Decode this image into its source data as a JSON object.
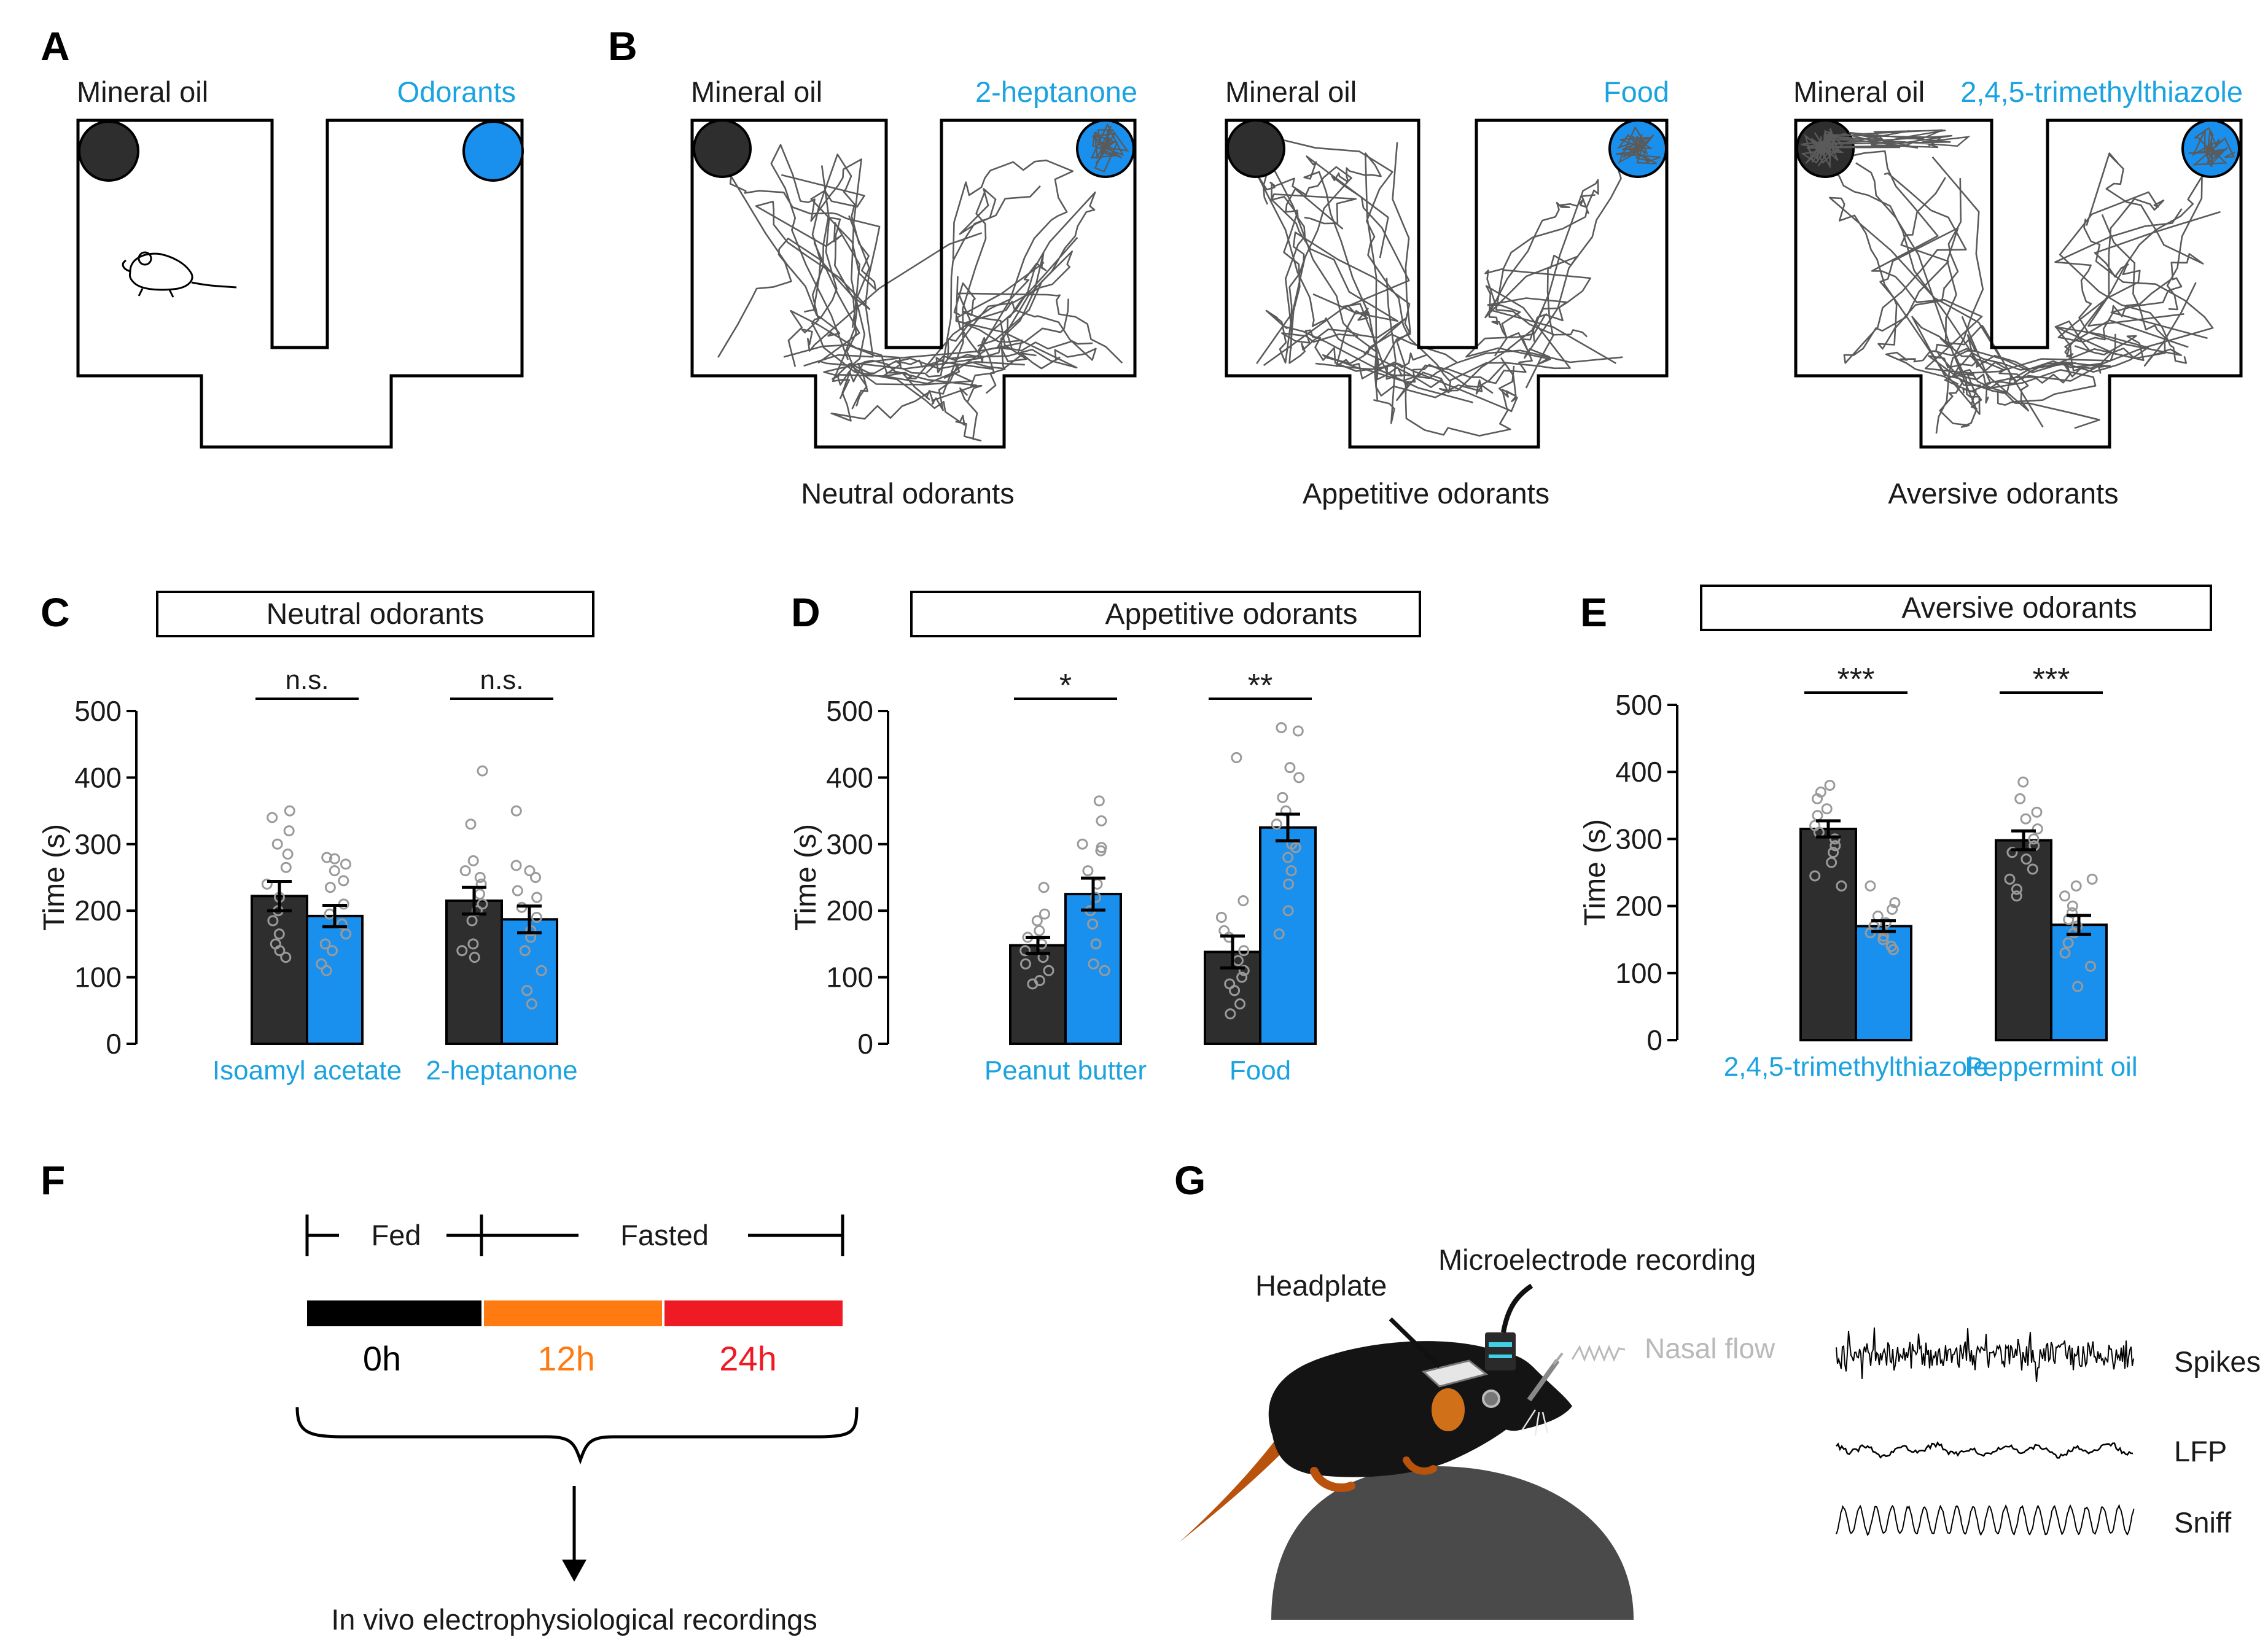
{
  "panels": {
    "A": "A",
    "B": "B",
    "C": "C",
    "D": "D",
    "E": "E",
    "F": "F",
    "G": "G"
  },
  "colors": {
    "dark": "#2e2e2e",
    "blue": "#1a90ee",
    "cyan_text": "#1aa3e0",
    "orange": "#ff7a10",
    "red": "#ee1a24",
    "track": "#5a5a5a"
  },
  "panel_a": {
    "left_label": "Mineral oil",
    "right_label": "Odorants"
  },
  "panel_b": {
    "mazes": [
      {
        "left_label": "Mineral oil",
        "right_label": "2-heptanone",
        "caption": "Neutral odorants"
      },
      {
        "left_label": "Mineral oil",
        "right_label": "Food",
        "caption": "Appetitive odorants"
      },
      {
        "left_label": "Mineral oil",
        "right_label": "2,4,5-trimethylthiazole",
        "caption": "Aversive odorants"
      }
    ]
  },
  "chart_data": [
    {
      "panel": "C",
      "type": "bar",
      "title": "Neutral odorants",
      "ylabel": "Time (s)",
      "ylim": [
        0,
        500
      ],
      "yticks": [
        0,
        100,
        200,
        300,
        400,
        500
      ],
      "categories": [
        "Isoamyl acetate",
        "2-heptanone"
      ],
      "series": [
        {
          "name": "Mineral oil",
          "values": [
            222,
            215
          ],
          "sem": [
            22,
            20
          ]
        },
        {
          "name": "Odorant",
          "values": [
            192,
            187
          ],
          "sem": [
            16,
            20
          ]
        }
      ],
      "significance": [
        "n.s.",
        "n.s."
      ],
      "points": [
        [
          [
            350,
            340,
            320,
            300,
            285,
            265,
            240,
            220,
            200,
            185,
            165,
            150,
            140,
            130
          ],
          [
            280,
            278,
            270,
            260,
            245,
            235,
            210,
            195,
            180,
            165,
            150,
            140,
            120,
            110
          ]
        ],
        [
          [
            410,
            330,
            275,
            260,
            250,
            240,
            225,
            210,
            200,
            185,
            150,
            140,
            130
          ],
          [
            350,
            268,
            260,
            250,
            230,
            220,
            205,
            190,
            170,
            160,
            140,
            110,
            80,
            60
          ]
        ]
      ]
    },
    {
      "panel": "D",
      "type": "bar",
      "title": "Appetitive odorants",
      "ylabel": "Time (s)",
      "ylim": [
        0,
        500
      ],
      "yticks": [
        0,
        100,
        200,
        300,
        400,
        500
      ],
      "categories": [
        "Peanut butter",
        "Food"
      ],
      "series": [
        {
          "name": "Mineral oil",
          "values": [
            148,
            138
          ],
          "sem": [
            12,
            24
          ]
        },
        {
          "name": "Odorant",
          "values": [
            225,
            325
          ],
          "sem": [
            24,
            20
          ]
        }
      ],
      "significance": [
        "*",
        "**"
      ],
      "points": [
        [
          [
            235,
            195,
            185,
            170,
            160,
            150,
            140,
            130,
            120,
            110,
            95,
            90
          ],
          [
            365,
            335,
            300,
            295,
            290,
            260,
            240,
            220,
            200,
            180,
            150,
            120,
            110
          ]
        ],
        [
          [
            430,
            215,
            190,
            170,
            160,
            140,
            125,
            110,
            100,
            90,
            80,
            60,
            45
          ],
          [
            475,
            470,
            415,
            400,
            370,
            350,
            330,
            300,
            295,
            280,
            260,
            240,
            200,
            165
          ]
        ]
      ]
    },
    {
      "panel": "E",
      "type": "bar",
      "title": "Aversive odorants",
      "ylabel": "Time (s)",
      "ylim": [
        0,
        500
      ],
      "yticks": [
        0,
        100,
        200,
        300,
        400,
        500
      ],
      "categories": [
        "2,4,5-trimethylthiazole",
        "Peppermint oil"
      ],
      "series": [
        {
          "name": "Mineral oil",
          "values": [
            315,
            298
          ],
          "sem": [
            12,
            14
          ]
        },
        {
          "name": "Odorant",
          "values": [
            170,
            172
          ],
          "sem": [
            8,
            14
          ]
        }
      ],
      "significance": [
        "***",
        "***"
      ],
      "points": [
        [
          [
            380,
            370,
            360,
            345,
            335,
            320,
            310,
            300,
            290,
            280,
            265,
            245,
            230
          ],
          [
            230,
            205,
            195,
            185,
            175,
            170,
            165,
            160,
            155,
            150,
            140,
            135
          ]
        ],
        [
          [
            385,
            360,
            340,
            330,
            315,
            300,
            290,
            280,
            270,
            255,
            240,
            225,
            215
          ],
          [
            240,
            230,
            215,
            200,
            190,
            180,
            170,
            160,
            145,
            130,
            110,
            80
          ]
        ]
      ]
    }
  ],
  "panel_f": {
    "fed_label": "Fed",
    "fasted_label": "Fasted",
    "times": [
      {
        "label": "0h",
        "color": "#000000"
      },
      {
        "label": "12h",
        "color": "#ff7a10"
      },
      {
        "label": "24h",
        "color": "#ee1a24"
      }
    ],
    "outcome": "In vivo electrophysiological recordings"
  },
  "panel_g": {
    "headplate": "Headplate",
    "microelectrode": "Microelectrode recording",
    "nasal_flow": "Nasal flow",
    "traces": [
      "Spikes",
      "LFP",
      "Sniff"
    ]
  }
}
